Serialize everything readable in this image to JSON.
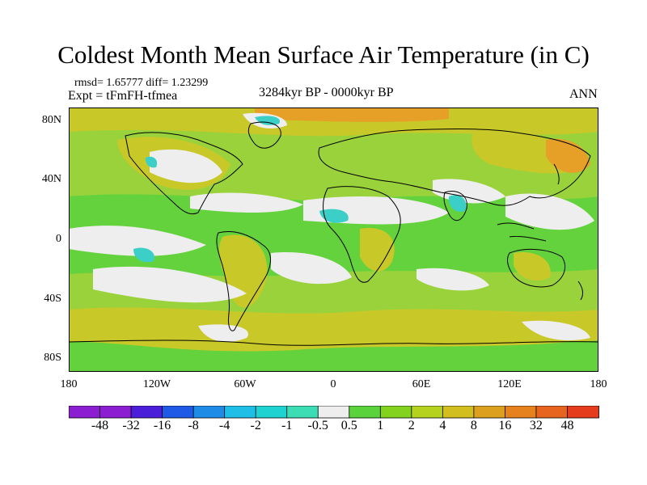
{
  "title": "Coldest Month Mean Surface Air Temperature (in C)",
  "stats": "rmsd= 1.65777 diff= 1.23299",
  "experiment": "Expt = tFmFH-tfmea",
  "period": "3284kyr BP - 0000kyr BP",
  "season": "ANN",
  "lat_labels": [
    "80N",
    "40N",
    "0",
    "40S",
    "80S"
  ],
  "lon_labels": [
    "180",
    "120W",
    "60W",
    "0",
    "60E",
    "120E",
    "180"
  ],
  "legend": {
    "labels": [
      "-48",
      "-32",
      "-16",
      "-8",
      "-4",
      "-2",
      "-1",
      "-0.5",
      "0.5",
      "1",
      "2",
      "4",
      "8",
      "16",
      "32",
      "48"
    ],
    "colors": [
      "#8c1ed2",
      "#4b1eda",
      "#1e5ae6",
      "#1e8ce6",
      "#1ebee6",
      "#1ed2d2",
      "#3cdcb4",
      "#eeeeee",
      "#5ad23c",
      "#82d21e",
      "#b4d21e",
      "#d2be1e",
      "#dca01e",
      "#e6821e",
      "#e6641e",
      "#e63c1e"
    ]
  },
  "field_colors": {
    "light_green": "#9ad23c",
    "green": "#64d23c",
    "yellow": "#c8c828",
    "orange": "#e6a028",
    "neutral": "#eeeeee",
    "cyan": "#3ccfc8"
  }
}
